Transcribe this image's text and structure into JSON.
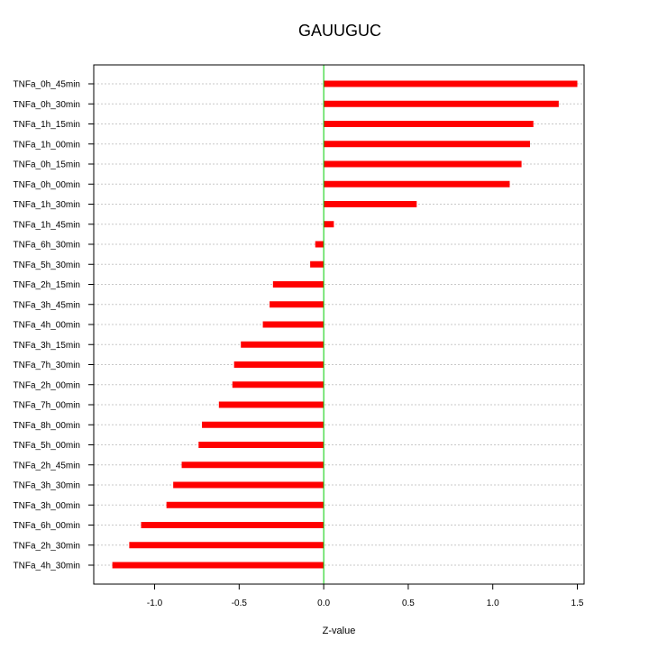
{
  "chart_data": {
    "type": "bar",
    "orientation": "horizontal",
    "title": "GAUUGUC",
    "xlabel": "Z-value",
    "ylabel": "",
    "xlim": [
      -1.36,
      1.54
    ],
    "xticks": [
      -1.0,
      -0.5,
      0.0,
      0.5,
      1.0,
      1.5
    ],
    "xtick_labels": [
      "-1.0",
      "-0.5",
      "0.0",
      "0.5",
      "1.0",
      "1.5"
    ],
    "grid": "horizontal dotted lines at each category",
    "reference_line": {
      "x": 0,
      "color": "#00cc00"
    },
    "bar_color": "#ff0000",
    "categories": [
      "TNFa_0h_45min",
      "TNFa_0h_30min",
      "TNFa_1h_15min",
      "TNFa_1h_00min",
      "TNFa_0h_15min",
      "TNFa_0h_00min",
      "TNFa_1h_30min",
      "TNFa_1h_45min",
      "TNFa_6h_30min",
      "TNFa_5h_30min",
      "TNFa_2h_15min",
      "TNFa_3h_45min",
      "TNFa_4h_00min",
      "TNFa_3h_15min",
      "TNFa_7h_30min",
      "TNFa_2h_00min",
      "TNFa_7h_00min",
      "TNFa_8h_00min",
      "TNFa_5h_00min",
      "TNFa_2h_45min",
      "TNFa_3h_30min",
      "TNFa_3h_00min",
      "TNFa_6h_00min",
      "TNFa_2h_30min",
      "TNFa_4h_30min"
    ],
    "values": [
      1.5,
      1.39,
      1.24,
      1.22,
      1.17,
      1.1,
      0.55,
      0.06,
      -0.05,
      -0.08,
      -0.3,
      -0.32,
      -0.36,
      -0.49,
      -0.53,
      -0.54,
      -0.62,
      -0.72,
      -0.74,
      -0.84,
      -0.89,
      -0.93,
      -1.08,
      -1.15,
      -1.25
    ]
  }
}
